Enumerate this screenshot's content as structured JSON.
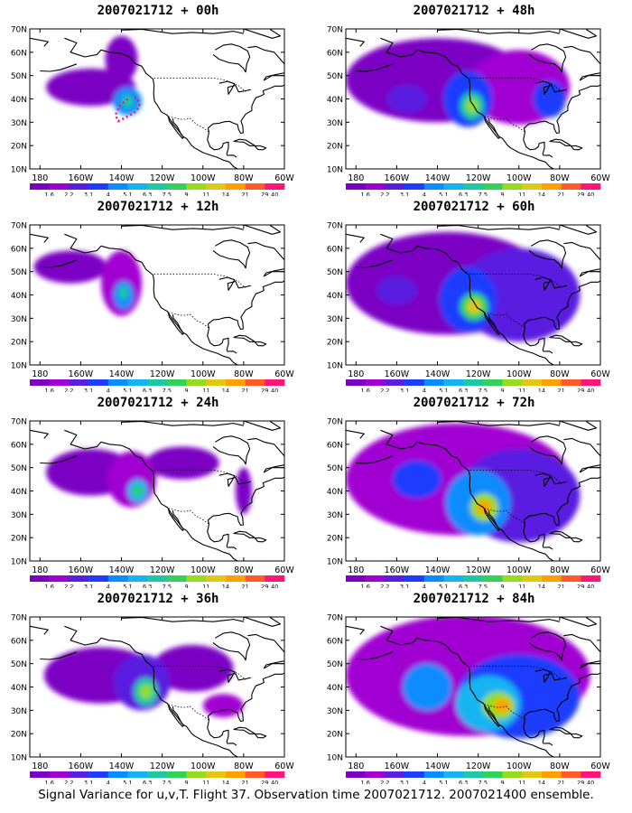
{
  "figure": {
    "caption": "Signal Variance for u,v,T. Flight 37. Observation time 2007021712. 2007021400 ensemble.",
    "lat_labels": [
      "70N",
      "60N",
      "50N",
      "40N",
      "30N",
      "20N",
      "10N"
    ],
    "lon_labels": [
      "180",
      "160W",
      "140W",
      "120W",
      "100W",
      "80W",
      "60W"
    ],
    "colorbar": {
      "labels": [
        "1.6",
        "2.2",
        "3.1",
        "4",
        "5.1",
        "6.3",
        "7.5",
        "9",
        "11",
        "14",
        "21",
        "29",
        "40"
      ],
      "colors": [
        "#7c00c4",
        "#a000d2",
        "#5a1ee0",
        "#1e3cff",
        "#0a8cff",
        "#14b4f0",
        "#1ec8a0",
        "#32d25a",
        "#96dc1e",
        "#e1c814",
        "#ffa000",
        "#ff5a28",
        "#ff1478"
      ]
    },
    "panels": [
      {
        "id": "p00",
        "title": "2007021712 + 00h",
        "forecast_hour": 0
      },
      {
        "id": "p48",
        "title": "2007021712 + 48h",
        "forecast_hour": 48
      },
      {
        "id": "p12",
        "title": "2007021712 + 12h",
        "forecast_hour": 12
      },
      {
        "id": "p60",
        "title": "2007021712 + 60h",
        "forecast_hour": 60
      },
      {
        "id": "p24",
        "title": "2007021712 + 24h",
        "forecast_hour": 24
      },
      {
        "id": "p72",
        "title": "2007021712 + 72h",
        "forecast_hour": 72
      },
      {
        "id": "p36",
        "title": "2007021712 + 36h",
        "forecast_hour": 36
      },
      {
        "id": "p84",
        "title": "2007021712 + 84h",
        "forecast_hour": 84
      }
    ],
    "flight_track_label": "Flight 37"
  }
}
